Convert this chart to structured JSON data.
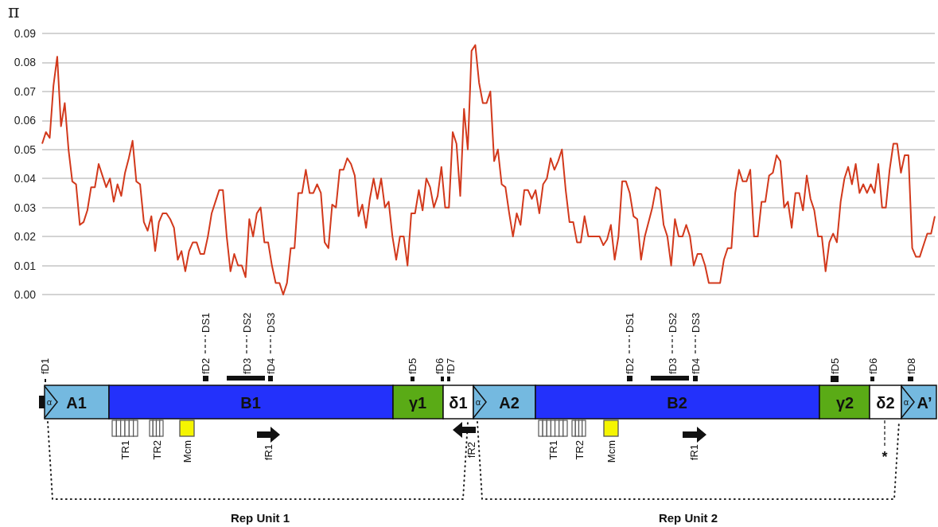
{
  "chart_data": {
    "type": "line",
    "ylabel": "π",
    "grid": "y",
    "tick_labels": "y",
    "ylim": [
      0,
      0.09
    ],
    "yticks": [
      {
        "value": 0,
        "label": "0.00"
      },
      {
        "value": 0.01,
        "label": "0.01"
      },
      {
        "value": 0.02,
        "label": "0.02"
      },
      {
        "value": 0.03,
        "label": "0.03"
      },
      {
        "value": 0.04,
        "label": "0.04"
      },
      {
        "value": 0.05,
        "label": "0.05"
      },
      {
        "value": 0.06,
        "label": "0.06"
      },
      {
        "value": 0.07,
        "label": "0.07"
      },
      {
        "value": 0.08,
        "label": "0.08"
      },
      {
        "value": 0.09,
        "label": "0.09"
      }
    ],
    "categories": [
      null,
      null,
      null,
      null,
      null,
      null,
      null,
      null,
      null,
      null,
      null,
      null,
      null,
      null,
      null,
      null,
      null,
      null,
      null,
      null,
      null,
      null,
      null,
      null,
      null,
      null,
      null,
      null,
      null,
      null,
      null,
      null,
      null,
      null,
      null,
      null,
      null,
      null,
      null,
      null,
      null,
      null,
      null,
      null,
      null,
      null,
      null,
      null,
      null,
      null,
      null,
      null,
      null,
      null,
      null,
      null,
      null,
      null,
      null,
      null,
      null,
      null,
      null,
      null,
      null,
      null,
      null,
      null,
      null,
      null,
      null,
      null,
      null,
      null,
      null,
      null,
      null,
      null,
      null,
      null,
      null,
      null,
      null,
      null,
      null,
      null,
      null,
      null,
      null,
      null,
      null,
      null,
      null,
      null,
      null,
      null,
      null,
      null,
      null,
      null,
      null,
      null,
      null,
      null,
      null,
      null,
      null,
      null,
      null,
      null,
      null,
      null,
      null,
      null,
      null,
      null,
      null,
      null,
      null,
      null,
      null,
      null,
      null,
      null,
      null,
      null,
      null,
      null,
      null,
      null,
      null,
      null,
      null,
      null,
      null,
      null,
      null,
      null,
      null,
      null,
      null,
      null,
      null,
      null,
      null,
      null,
      null,
      null,
      null,
      null,
      null,
      null,
      null,
      null,
      null,
      null,
      null,
      null,
      null,
      null,
      null,
      null,
      null,
      null,
      null,
      null,
      null,
      null,
      null,
      null,
      null,
      null,
      null,
      null,
      null,
      null,
      null,
      null,
      null,
      null,
      null,
      null,
      null,
      null,
      null,
      null,
      null,
      null,
      null,
      null,
      null,
      null,
      null,
      null,
      null,
      null,
      null,
      null,
      null,
      null,
      null,
      null,
      null,
      null,
      null,
      null,
      null,
      null,
      null,
      null,
      null,
      null,
      null,
      null,
      null,
      null,
      null,
      null,
      null,
      null,
      null,
      null,
      null,
      null,
      null,
      null,
      null,
      null,
      null,
      null,
      null,
      null,
      null,
      null,
      null,
      null,
      null,
      null
    ],
    "series": [
      {
        "color": "#d2391c",
        "values": [
          0.052,
          0.056,
          0.054,
          0.072,
          0.082,
          0.058,
          0.066,
          0.05,
          0.039,
          0.038,
          0.024,
          0.025,
          0.029,
          0.037,
          0.037,
          0.045,
          0.041,
          0.037,
          0.04,
          0.032,
          0.038,
          0.034,
          0.042,
          0.047,
          0.053,
          0.039,
          0.038,
          0.025,
          0.022,
          0.027,
          0.015,
          0.025,
          0.028,
          0.028,
          0.026,
          0.023,
          0.012,
          0.015,
          0.008,
          0.015,
          0.018,
          0.018,
          0.014,
          0.014,
          0.02,
          0.028,
          0.032,
          0.036,
          0.036,
          0.02,
          0.008,
          0.014,
          0.01,
          0.01,
          0.006,
          0.026,
          0.02,
          0.028,
          0.03,
          0.018,
          0.018,
          0.01,
          0.004,
          0.004,
          0.0,
          0.004,
          0.016,
          0.016,
          0.035,
          0.035,
          0.043,
          0.035,
          0.035,
          0.038,
          0.035,
          0.018,
          0.016,
          0.031,
          0.03,
          0.043,
          0.043,
          0.047,
          0.045,
          0.041,
          0.027,
          0.031,
          0.023,
          0.033,
          0.04,
          0.033,
          0.04,
          0.03,
          0.032,
          0.02,
          0.012,
          0.02,
          0.02,
          0.01,
          0.028,
          0.028,
          0.036,
          0.029,
          0.04,
          0.037,
          0.03,
          0.034,
          0.044,
          0.03,
          0.03,
          0.056,
          0.052,
          0.034,
          0.064,
          0.05,
          0.084,
          0.086,
          0.073,
          0.066,
          0.066,
          0.07,
          0.046,
          0.05,
          0.038,
          0.037,
          0.028,
          0.02,
          0.028,
          0.024,
          0.036,
          0.036,
          0.033,
          0.036,
          0.028,
          0.038,
          0.04,
          0.047,
          0.043,
          0.046,
          0.05,
          0.036,
          0.025,
          0.025,
          0.018,
          0.018,
          0.027,
          0.02,
          0.02,
          0.02,
          0.02,
          0.017,
          0.019,
          0.024,
          0.012,
          0.02,
          0.039,
          0.039,
          0.035,
          0.027,
          0.026,
          0.012,
          0.02,
          0.025,
          0.03,
          0.037,
          0.036,
          0.024,
          0.02,
          0.01,
          0.026,
          0.02,
          0.02,
          0.024,
          0.02,
          0.01,
          0.014,
          0.014,
          0.01,
          0.004,
          0.004,
          0.004,
          0.004,
          0.012,
          0.016,
          0.016,
          0.035,
          0.043,
          0.039,
          0.039,
          0.043,
          0.02,
          0.02,
          0.032,
          0.032,
          0.041,
          0.042,
          0.048,
          0.046,
          0.03,
          0.032,
          0.023,
          0.035,
          0.035,
          0.029,
          0.041,
          0.033,
          0.029,
          0.02,
          0.02,
          0.008,
          0.018,
          0.021,
          0.018,
          0.032,
          0.04,
          0.044,
          0.038,
          0.045,
          0.035,
          0.038,
          0.035,
          0.038,
          0.035,
          0.045,
          0.03,
          0.03,
          0.043,
          0.052,
          0.052,
          0.042,
          0.048,
          0.048,
          0.016,
          0.013,
          0.013,
          0.017,
          0.021,
          0.021,
          0.027
        ]
      }
    ],
    "annotations": [
      "A1",
      "B1",
      "γ1",
      "δ1",
      "A2",
      "B2",
      "γ2",
      "δ2",
      "A’",
      "α",
      "α",
      "α",
      "fD1",
      "fD2",
      "DS1",
      "fD3",
      "DS2",
      "fD4",
      "DS3",
      "fD5",
      "fD6",
      "fD7",
      "fD2",
      "DS1",
      "fD3",
      "DS2",
      "fD4",
      "DS3",
      "fD5",
      "fD6",
      "fD8",
      "TR1",
      "TR2",
      "Mcm",
      "fR1",
      "fR2",
      "TR1",
      "TR2",
      "Mcm",
      "fR1",
      "*",
      "Rep Unit 1",
      "Rep Unit 2"
    ]
  }
}
